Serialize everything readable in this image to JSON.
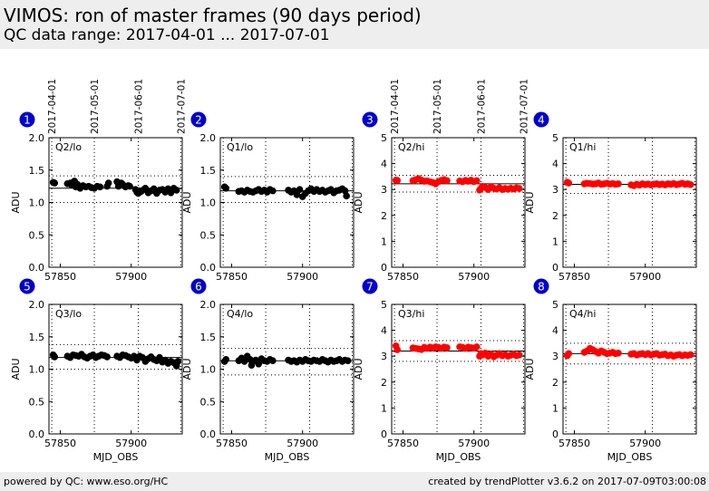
{
  "header": {
    "title": "VIMOS: ron of master frames (90 days period)",
    "subtitle": "QC data range: 2017-04-01 ... 2017-07-01"
  },
  "footer": {
    "left": "powered by QC: www.eso.org/HC",
    "right": "created by trendPlotter v3.6.2 on 2017-07-09T03:00:08"
  },
  "colors": {
    "lo": "#000000",
    "hi": "#ff0000",
    "badge": "#0000cc"
  },
  "chart_data": [
    {
      "type": "scatter",
      "panel_number": "1",
      "label": "Q2/lo",
      "xlabel": "",
      "ylabel": "ADU",
      "xlim": [
        57842,
        57936
      ],
      "ylim": [
        0,
        2.0
      ],
      "yticks": [
        0.0,
        0.5,
        1.0,
        1.5,
        2.0
      ],
      "ytick_labels": [
        "0.0",
        "0.5",
        "1.0",
        "1.5",
        "2.0"
      ],
      "xticks": [
        57850,
        57900
      ],
      "xtick_labels": [
        "57850",
        "57900"
      ],
      "date_ticks": [
        {
          "x": 57844,
          "label": "2017-04-01"
        },
        {
          "x": 57874,
          "label": "2017-05-01"
        },
        {
          "x": 57905,
          "label": "2017-06-01"
        },
        {
          "x": 57935,
          "label": "2017-07-01"
        }
      ],
      "reference_line": 1.22,
      "band": [
        1.0,
        1.41
      ],
      "color": "black",
      "x": [
        57845,
        57846,
        57855,
        57857,
        57858,
        57859,
        57860,
        57861,
        57862,
        57864,
        57866,
        57868,
        57870,
        57872,
        57874,
        57876,
        57878,
        57883,
        57884,
        57890,
        57891,
        57893,
        57894,
        57896,
        57898,
        57899,
        57903,
        57904,
        57905,
        57906,
        57907,
        57909,
        57910,
        57912,
        57914,
        57916,
        57918,
        57920,
        57922,
        57924,
        57926,
        57928,
        57930,
        57932
      ],
      "y": [
        1.31,
        1.3,
        1.29,
        1.3,
        1.27,
        1.31,
        1.33,
        1.24,
        1.28,
        1.22,
        1.26,
        1.24,
        1.25,
        1.23,
        1.22,
        1.25,
        1.24,
        1.25,
        1.3,
        1.32,
        1.25,
        1.3,
        1.28,
        1.24,
        1.26,
        1.25,
        1.2,
        1.16,
        1.14,
        1.18,
        1.17,
        1.2,
        1.22,
        1.15,
        1.18,
        1.21,
        1.14,
        1.19,
        1.2,
        1.16,
        1.21,
        1.15,
        1.22,
        1.19
      ]
    },
    {
      "type": "scatter",
      "panel_number": "2",
      "label": "Q1/lo",
      "xlabel": "",
      "ylabel": "ADU",
      "xlim": [
        57842,
        57936
      ],
      "ylim": [
        0,
        2.0
      ],
      "yticks": [
        0.0,
        0.5,
        1.0,
        1.5,
        2.0
      ],
      "ytick_labels": [
        "0.0",
        "0.5",
        "1.0",
        "1.5",
        "2.0"
      ],
      "xticks": [
        57850,
        57900
      ],
      "xtick_labels": [
        "57850",
        "57900"
      ],
      "date_ticks": [],
      "reference_line": 1.18,
      "band": [
        1.0,
        1.4
      ],
      "color": "black",
      "x": [
        57845,
        57846,
        57855,
        57857,
        57859,
        57861,
        57863,
        57865,
        57867,
        57869,
        57871,
        57873,
        57875,
        57877,
        57879,
        57890,
        57892,
        57894,
        57896,
        57898,
        57900,
        57902,
        57904,
        57906,
        57908,
        57910,
        57912,
        57914,
        57916,
        57918,
        57920,
        57922,
        57924,
        57926,
        57928,
        57930,
        57931
      ],
      "y": [
        1.24,
        1.22,
        1.17,
        1.18,
        1.16,
        1.19,
        1.17,
        1.16,
        1.18,
        1.2,
        1.17,
        1.19,
        1.16,
        1.2,
        1.18,
        1.19,
        1.16,
        1.18,
        1.12,
        1.2,
        1.09,
        1.14,
        1.18,
        1.21,
        1.17,
        1.2,
        1.17,
        1.19,
        1.16,
        1.18,
        1.2,
        1.15,
        1.18,
        1.19,
        1.21,
        1.18,
        1.1
      ]
    },
    {
      "type": "scatter",
      "panel_number": "3",
      "label": "Q2/hi",
      "xlabel": "",
      "ylabel": "ADU",
      "xlim": [
        57842,
        57936
      ],
      "ylim": [
        0,
        5
      ],
      "yticks": [
        0,
        1,
        2,
        3,
        4,
        5
      ],
      "ytick_labels": [
        "0",
        "1",
        "2",
        "3",
        "4",
        "5"
      ],
      "xticks": [
        57850,
        57900
      ],
      "xtick_labels": [
        "57850",
        "57900"
      ],
      "date_ticks": [
        {
          "x": 57844,
          "label": "2017-04-01"
        },
        {
          "x": 57874,
          "label": "2017-05-01"
        },
        {
          "x": 57905,
          "label": "2017-06-01"
        },
        {
          "x": 57935,
          "label": "2017-07-01"
        }
      ],
      "reference_line": 3.22,
      "band": [
        2.9,
        3.55
      ],
      "color": "red",
      "x": [
        57845,
        57846,
        57857,
        57859,
        57861,
        57863,
        57865,
        57867,
        57869,
        57871,
        57873,
        57875,
        57877,
        57879,
        57881,
        57890,
        57892,
        57894,
        57896,
        57898,
        57900,
        57902,
        57904,
        57905,
        57906,
        57908,
        57910,
        57912,
        57914,
        57916,
        57918,
        57920,
        57922,
        57924,
        57926,
        57928,
        57930,
        57932
      ],
      "y": [
        3.36,
        3.35,
        3.34,
        3.38,
        3.42,
        3.36,
        3.32,
        3.33,
        3.3,
        3.27,
        3.22,
        3.3,
        3.35,
        3.38,
        3.34,
        3.33,
        3.3,
        3.35,
        3.32,
        3.36,
        3.3,
        3.34,
        2.98,
        3.05,
        3.12,
        3.08,
        3.0,
        3.11,
        3.05,
        3.02,
        3.07,
        3.0,
        3.04,
        3.01,
        3.05,
        3.02,
        3.06,
        3.04
      ]
    },
    {
      "type": "scatter",
      "panel_number": "4",
      "label": "Q1/hi",
      "xlabel": "",
      "ylabel": "ADU",
      "xlim": [
        57842,
        57936
      ],
      "ylim": [
        0,
        5
      ],
      "yticks": [
        0,
        1,
        2,
        3,
        4,
        5
      ],
      "ytick_labels": [
        "0",
        "1",
        "2",
        "3",
        "4",
        "5"
      ],
      "xticks": [
        57850,
        57900
      ],
      "xtick_labels": [
        "57850",
        "57900"
      ],
      "date_ticks": [],
      "reference_line": 3.2,
      "band": [
        2.85,
        3.55
      ],
      "color": "red",
      "x": [
        57845,
        57846,
        57857,
        57859,
        57861,
        57863,
        57865,
        57867,
        57869,
        57871,
        57873,
        57875,
        57877,
        57879,
        57881,
        57890,
        57892,
        57894,
        57896,
        57898,
        57900,
        57902,
        57904,
        57906,
        57908,
        57910,
        57912,
        57914,
        57916,
        57918,
        57920,
        57922,
        57924,
        57926,
        57928,
        57930,
        57932
      ],
      "y": [
        3.28,
        3.25,
        3.22,
        3.24,
        3.23,
        3.21,
        3.22,
        3.25,
        3.2,
        3.22,
        3.24,
        3.21,
        3.23,
        3.2,
        3.22,
        3.18,
        3.15,
        3.2,
        3.17,
        3.22,
        3.19,
        3.21,
        3.18,
        3.2,
        3.22,
        3.19,
        3.21,
        3.18,
        3.22,
        3.2,
        3.23,
        3.19,
        3.21,
        3.24,
        3.2,
        3.22,
        3.19
      ]
    },
    {
      "type": "scatter",
      "panel_number": "5",
      "label": "Q3/lo",
      "xlabel": "MJD_OBS",
      "ylabel": "ADU",
      "xlim": [
        57842,
        57936
      ],
      "ylim": [
        0,
        2.0
      ],
      "yticks": [
        0.0,
        0.5,
        1.0,
        1.5,
        2.0
      ],
      "ytick_labels": [
        "0.0",
        "0.5",
        "1.0",
        "1.5",
        "2.0"
      ],
      "xticks": [
        57850,
        57900
      ],
      "xtick_labels": [
        "57850",
        "57900"
      ],
      "date_ticks": [],
      "reference_line": 1.18,
      "band": [
        1.0,
        1.38
      ],
      "color": "black",
      "x": [
        57845,
        57846,
        57855,
        57857,
        57859,
        57861,
        57863,
        57865,
        57867,
        57869,
        57871,
        57873,
        57875,
        57877,
        57879,
        57881,
        57883,
        57890,
        57892,
        57894,
        57896,
        57898,
        57900,
        57902,
        57904,
        57906,
        57908,
        57910,
        57912,
        57914,
        57916,
        57918,
        57920,
        57922,
        57924,
        57926,
        57928,
        57930,
        57932,
        57933
      ],
      "y": [
        1.22,
        1.19,
        1.2,
        1.18,
        1.22,
        1.21,
        1.2,
        1.23,
        1.19,
        1.17,
        1.2,
        1.22,
        1.18,
        1.2,
        1.22,
        1.21,
        1.19,
        1.2,
        1.18,
        1.22,
        1.21,
        1.19,
        1.17,
        1.2,
        1.14,
        1.2,
        1.18,
        1.12,
        1.16,
        1.19,
        1.15,
        1.13,
        1.18,
        1.11,
        1.14,
        1.09,
        1.12,
        1.1,
        1.05,
        1.12
      ]
    },
    {
      "type": "scatter",
      "panel_number": "6",
      "label": "Q4/lo",
      "xlabel": "MJD_OBS",
      "ylabel": "ADU",
      "xlim": [
        57842,
        57936
      ],
      "ylim": [
        0,
        2.0
      ],
      "yticks": [
        0.0,
        0.5,
        1.0,
        1.5,
        2.0
      ],
      "ytick_labels": [
        "0.0",
        "0.5",
        "1.0",
        "1.5",
        "2.0"
      ],
      "xticks": [
        57850,
        57900
      ],
      "xtick_labels": [
        "57850",
        "57900"
      ],
      "date_ticks": [],
      "reference_line": 1.13,
      "band": [
        0.91,
        1.32
      ],
      "color": "black",
      "x": [
        57845,
        57846,
        57855,
        57857,
        57859,
        57861,
        57863,
        57864,
        57865,
        57867,
        57869,
        57871,
        57873,
        57875,
        57877,
        57879,
        57890,
        57892,
        57894,
        57896,
        57898,
        57900,
        57902,
        57904,
        57906,
        57908,
        57910,
        57912,
        57914,
        57916,
        57918,
        57920,
        57922,
        57924,
        57926,
        57928,
        57930,
        57932
      ],
      "y": [
        1.12,
        1.15,
        1.13,
        1.17,
        1.12,
        1.2,
        1.15,
        1.06,
        1.12,
        1.14,
        1.08,
        1.16,
        1.13,
        1.12,
        1.15,
        1.13,
        1.14,
        1.12,
        1.13,
        1.11,
        1.14,
        1.12,
        1.15,
        1.13,
        1.12,
        1.14,
        1.13,
        1.12,
        1.15,
        1.13,
        1.11,
        1.14,
        1.12,
        1.13,
        1.15,
        1.12,
        1.14,
        1.13
      ]
    },
    {
      "type": "scatter",
      "panel_number": "7",
      "label": "Q3/hi",
      "xlabel": "MJD_OBS",
      "ylabel": "ADU",
      "xlim": [
        57842,
        57936
      ],
      "ylim": [
        0,
        5
      ],
      "yticks": [
        0,
        1,
        2,
        3,
        4,
        5
      ],
      "ytick_labels": [
        "0",
        "1",
        "2",
        "3",
        "4",
        "5"
      ],
      "xticks": [
        57850,
        57900
      ],
      "xtick_labels": [
        "57850",
        "57900"
      ],
      "date_ticks": [],
      "reference_line": 3.2,
      "band": [
        2.8,
        3.6
      ],
      "color": "red",
      "x": [
        57845,
        57846,
        57857,
        57859,
        57861,
        57863,
        57865,
        57867,
        57869,
        57871,
        57873,
        57875,
        57877,
        57879,
        57881,
        57890,
        57892,
        57894,
        57896,
        57898,
        57900,
        57902,
        57904,
        57905,
        57906,
        57908,
        57910,
        57912,
        57914,
        57916,
        57918,
        57920,
        57922,
        57924,
        57926,
        57928,
        57930,
        57932
      ],
      "y": [
        3.4,
        3.25,
        3.32,
        3.3,
        3.28,
        3.26,
        3.34,
        3.3,
        3.35,
        3.32,
        3.36,
        3.34,
        3.3,
        3.35,
        3.33,
        3.36,
        3.34,
        3.3,
        3.35,
        3.33,
        3.31,
        3.36,
        3.0,
        3.1,
        3.05,
        3.12,
        3.0,
        3.08,
        2.98,
        3.04,
        3.1,
        3.02,
        3.06,
        3.0,
        3.04,
        3.08,
        3.02,
        3.05
      ]
    },
    {
      "type": "scatter",
      "panel_number": "8",
      "label": "Q4/hi",
      "xlabel": "MJD_OBS",
      "ylabel": "ADU",
      "xlim": [
        57842,
        57936
      ],
      "ylim": [
        0,
        5
      ],
      "yticks": [
        0,
        1,
        2,
        3,
        4,
        5
      ],
      "ytick_labels": [
        "0",
        "1",
        "2",
        "3",
        "4",
        "5"
      ],
      "xticks": [
        57850,
        57900
      ],
      "xtick_labels": [
        "57850",
        "57900"
      ],
      "date_ticks": [],
      "reference_line": 3.1,
      "band": [
        2.7,
        3.5
      ],
      "color": "red",
      "x": [
        57845,
        57846,
        57857,
        57859,
        57861,
        57863,
        57865,
        57867,
        57869,
        57871,
        57873,
        57875,
        57877,
        57879,
        57881,
        57890,
        57892,
        57894,
        57896,
        57898,
        57900,
        57902,
        57904,
        57906,
        57908,
        57910,
        57912,
        57914,
        57916,
        57918,
        57920,
        57922,
        57924,
        57926,
        57928,
        57930,
        57932
      ],
      "y": [
        3.02,
        3.1,
        3.15,
        3.2,
        3.3,
        3.25,
        3.18,
        3.12,
        3.2,
        3.15,
        3.1,
        3.12,
        3.15,
        3.1,
        3.12,
        3.08,
        3.1,
        3.05,
        3.08,
        3.1,
        3.06,
        3.1,
        3.05,
        3.08,
        3.1,
        3.04,
        3.06,
        3.08,
        3.02,
        3.05,
        3.0,
        3.04,
        3.06,
        3.02,
        3.05,
        3.03,
        3.06
      ]
    }
  ]
}
